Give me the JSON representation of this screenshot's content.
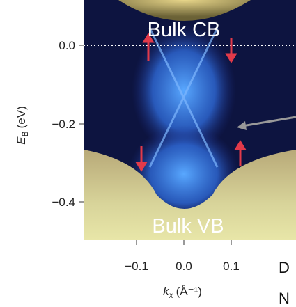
{
  "figure": {
    "band_labels": [
      "Bulk CB",
      "Bulk VB"
    ],
    "y_axis": {
      "label": {
        "main": "E",
        "sub": "B",
        "unit": "(eV)"
      },
      "ticks": [
        "0.0",
        "−0.2",
        "−0.4"
      ]
    },
    "x_axis": {
      "label": {
        "main": "k",
        "sub": "x",
        "unit": "(Å⁻¹)"
      },
      "ticks": [
        "−0.1",
        "0.0",
        "0.1"
      ]
    },
    "caption_fragments": [
      "D",
      "N"
    ]
  }
}
